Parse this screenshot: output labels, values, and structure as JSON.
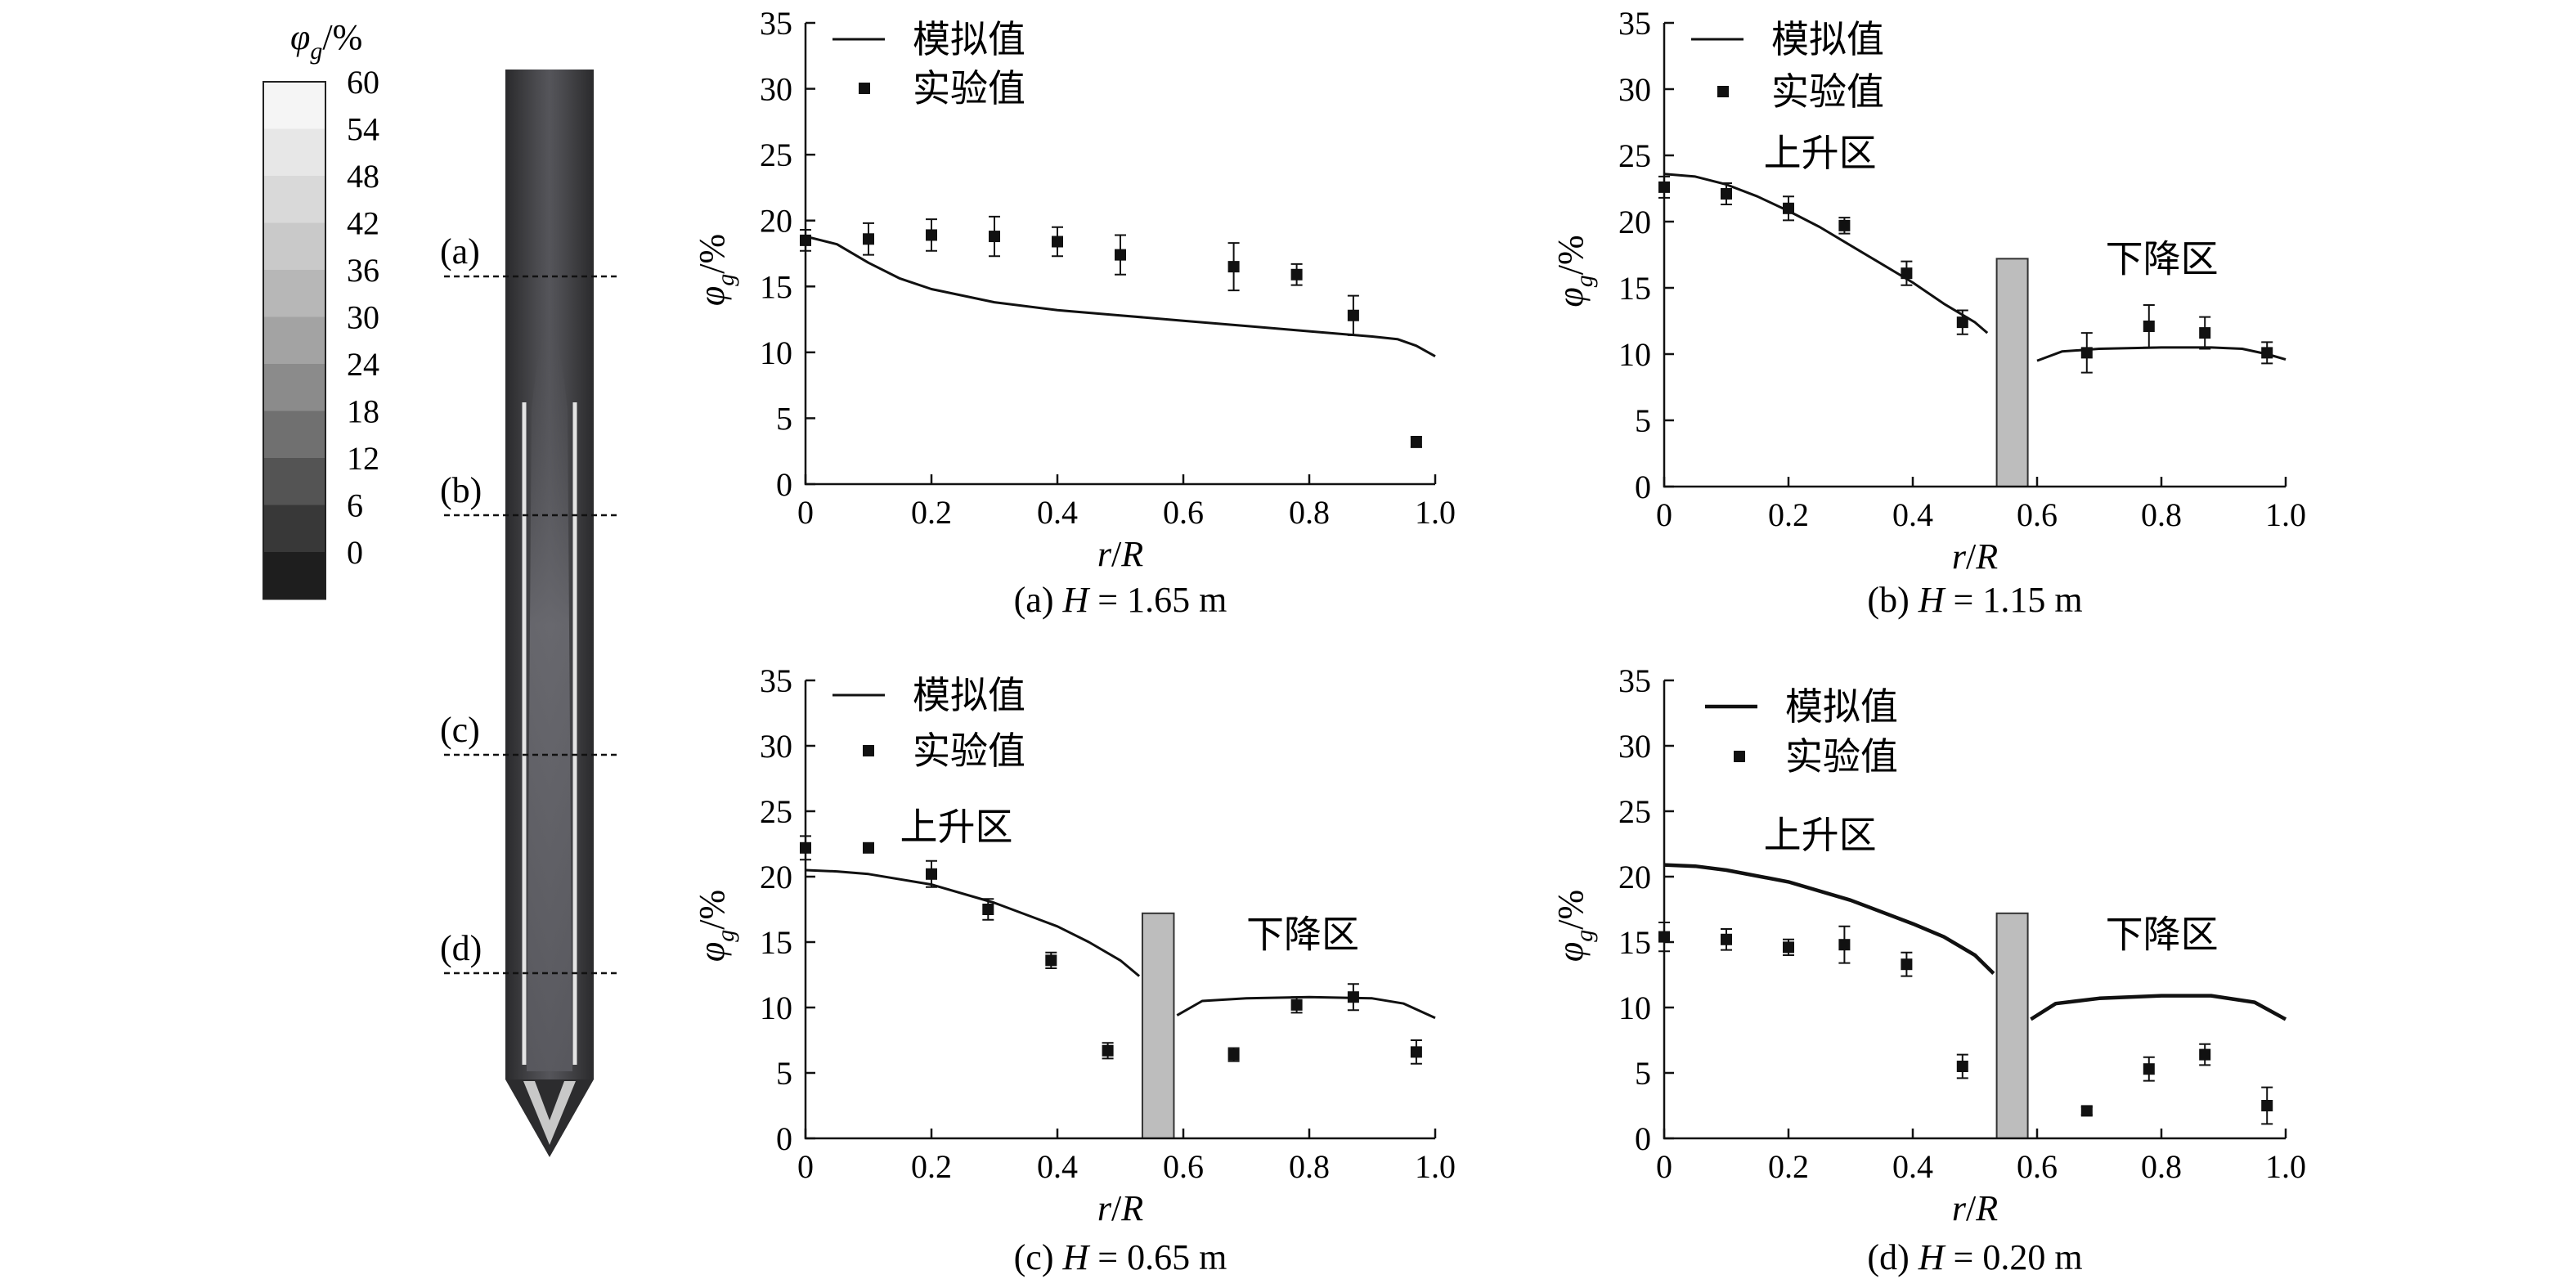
{
  "colorbar": {
    "title_sym": "φ",
    "title_sub": "g",
    "title_unit": "/%",
    "ticks": [
      "60",
      "54",
      "48",
      "42",
      "36",
      "30",
      "24",
      "18",
      "12",
      "6",
      "0"
    ],
    "colors": [
      "#f5f5f5",
      "#e7e7e7",
      "#d9d9d9",
      "#c9c9c9",
      "#b7b7b7",
      "#a3a3a3",
      "#8b8b8b",
      "#707070",
      "#545454",
      "#383838",
      "#1e1e1e"
    ]
  },
  "column": {
    "sections": [
      "(a)",
      "(b)",
      "(c)",
      "(d)"
    ]
  },
  "axis_text": {
    "ylabel_sym": "φ",
    "ylabel_sub": "g",
    "ylabel_unit": "/%",
    "xlabel_r": "r",
    "xlabel_sep": "/",
    "xlabel_R": "R"
  },
  "legend": {
    "sim": "模拟值",
    "exp": "实验值"
  },
  "chart_data": [
    {
      "type": "line+scatter",
      "caption_pre": "(a)",
      "caption_H": "H",
      "caption_val": " = 1.65 m",
      "xlim": [
        0,
        1.0
      ],
      "ylim": [
        0,
        35
      ],
      "xticks": [
        "0",
        "0.2",
        "0.4",
        "0.6",
        "0.8",
        "1.0"
      ],
      "yticks": [
        "0",
        "5",
        "10",
        "15",
        "20",
        "25",
        "30",
        "35"
      ],
      "baffle": null,
      "zone_labels": [],
      "sim_segments": [
        [
          [
            0,
            18.8
          ],
          [
            0.05,
            18.2
          ],
          [
            0.1,
            16.8
          ],
          [
            0.15,
            15.6
          ],
          [
            0.2,
            14.8
          ],
          [
            0.3,
            13.8
          ],
          [
            0.4,
            13.2
          ],
          [
            0.5,
            12.8
          ],
          [
            0.6,
            12.4
          ],
          [
            0.7,
            12.0
          ],
          [
            0.8,
            11.6
          ],
          [
            0.9,
            11.2
          ],
          [
            0.94,
            11.0
          ],
          [
            0.97,
            10.5
          ],
          [
            1.0,
            9.7
          ]
        ]
      ],
      "exp_points": [
        [
          0,
          18.5,
          0.8
        ],
        [
          0.1,
          18.6,
          1.2
        ],
        [
          0.2,
          18.9,
          1.2
        ],
        [
          0.3,
          18.8,
          1.5
        ],
        [
          0.4,
          18.4,
          1.1
        ],
        [
          0.5,
          17.4,
          1.5
        ],
        [
          0.68,
          16.5,
          1.8
        ],
        [
          0.78,
          15.9,
          0.8
        ],
        [
          0.87,
          12.8,
          1.5
        ],
        [
          0.97,
          3.2,
          0.4
        ]
      ]
    },
    {
      "type": "line+scatter",
      "caption_pre": "(b)",
      "caption_H": "H",
      "caption_val": " = 1.15 m",
      "xlim": [
        0,
        1.0
      ],
      "ylim": [
        0,
        35
      ],
      "xticks": [
        "0",
        "0.2",
        "0.4",
        "0.6",
        "0.8",
        "1.0"
      ],
      "yticks": [
        "0",
        "5",
        "10",
        "15",
        "20",
        "25",
        "30",
        "35"
      ],
      "baffle": {
        "x0": 0.535,
        "x1": 0.585,
        "y0": 0,
        "y1": 17.2
      },
      "zone_labels": [
        {
          "text": "上升区",
          "x": 0.16,
          "y": 24.2
        },
        {
          "text": "下降区",
          "x": 0.71,
          "y": 16.2
        }
      ],
      "sim_segments": [
        [
          [
            0,
            23.6
          ],
          [
            0.05,
            23.4
          ],
          [
            0.1,
            22.8
          ],
          [
            0.15,
            21.9
          ],
          [
            0.2,
            20.8
          ],
          [
            0.25,
            19.6
          ],
          [
            0.3,
            18.2
          ],
          [
            0.35,
            16.8
          ],
          [
            0.4,
            15.4
          ],
          [
            0.45,
            13.8
          ],
          [
            0.5,
            12.4
          ],
          [
            0.52,
            11.6
          ]
        ],
        [
          [
            0.6,
            9.5
          ],
          [
            0.64,
            10.2
          ],
          [
            0.7,
            10.4
          ],
          [
            0.8,
            10.5
          ],
          [
            0.88,
            10.5
          ],
          [
            0.93,
            10.4
          ],
          [
            0.97,
            10.0
          ],
          [
            1.0,
            9.6
          ]
        ]
      ],
      "exp_points": [
        [
          0,
          22.6,
          0.8
        ],
        [
          0.1,
          22.1,
          0.8
        ],
        [
          0.2,
          21.0,
          0.9
        ],
        [
          0.29,
          19.7,
          0.6
        ],
        [
          0.39,
          16.1,
          0.9
        ],
        [
          0.48,
          12.4,
          0.9
        ],
        [
          0.68,
          10.1,
          1.5
        ],
        [
          0.78,
          12.1,
          1.6
        ],
        [
          0.87,
          11.6,
          1.2
        ],
        [
          0.97,
          10.1,
          0.8
        ]
      ]
    },
    {
      "type": "line+scatter",
      "caption_pre": "(c)",
      "caption_H": "H",
      "caption_val": " = 0.65 m",
      "xlim": [
        0,
        1.0
      ],
      "ylim": [
        0,
        35
      ],
      "xticks": [
        "0",
        "0.2",
        "0.4",
        "0.6",
        "0.8",
        "1.0"
      ],
      "yticks": [
        "0",
        "5",
        "10",
        "15",
        "20",
        "25",
        "30",
        "35"
      ],
      "baffle": {
        "x0": 0.535,
        "x1": 0.585,
        "y0": 0,
        "y1": 17.2
      },
      "zone_labels": [
        {
          "text": "上升区",
          "x": 0.15,
          "y": 22.8
        },
        {
          "text": "下降区",
          "x": 0.7,
          "y": 14.6
        }
      ],
      "sim_segments": [
        [
          [
            0,
            20.5
          ],
          [
            0.05,
            20.4
          ],
          [
            0.1,
            20.2
          ],
          [
            0.2,
            19.4
          ],
          [
            0.3,
            18.0
          ],
          [
            0.4,
            16.2
          ],
          [
            0.45,
            15.0
          ],
          [
            0.5,
            13.6
          ],
          [
            0.53,
            12.4
          ]
        ],
        [
          [
            0.59,
            9.4
          ],
          [
            0.63,
            10.5
          ],
          [
            0.7,
            10.7
          ],
          [
            0.8,
            10.8
          ],
          [
            0.9,
            10.7
          ],
          [
            0.95,
            10.3
          ],
          [
            1.0,
            9.2
          ]
        ]
      ],
      "exp_points": [
        [
          0,
          22.2,
          0.9
        ],
        [
          0.1,
          22.2,
          0.3
        ],
        [
          0.2,
          20.2,
          1.0
        ],
        [
          0.29,
          17.5,
          0.8
        ],
        [
          0.39,
          13.6,
          0.6
        ],
        [
          0.48,
          6.7,
          0.6
        ],
        [
          0.68,
          6.4,
          0.5
        ],
        [
          0.78,
          10.2,
          0.6
        ],
        [
          0.87,
          10.8,
          1.0
        ],
        [
          0.97,
          6.6,
          0.9
        ]
      ]
    },
    {
      "type": "line+scatter",
      "caption_pre": "(d)",
      "caption_H": "H",
      "caption_val": " = 0.20 m",
      "xlim": [
        0,
        1.0
      ],
      "ylim": [
        0,
        35
      ],
      "xticks": [
        "0",
        "0.2",
        "0.4",
        "0.6",
        "0.8",
        "1.0"
      ],
      "yticks": [
        "0",
        "5",
        "10",
        "15",
        "20",
        "25",
        "30",
        "35"
      ],
      "baffle": {
        "x0": 0.535,
        "x1": 0.585,
        "y0": 0,
        "y1": 17.2
      },
      "zone_labels": [
        {
          "text": "上升区",
          "x": 0.16,
          "y": 22.2
        },
        {
          "text": "下降区",
          "x": 0.71,
          "y": 14.6
        }
      ],
      "sim_segments": [
        [
          [
            0,
            20.9
          ],
          [
            0.05,
            20.8
          ],
          [
            0.1,
            20.5
          ],
          [
            0.2,
            19.6
          ],
          [
            0.3,
            18.2
          ],
          [
            0.4,
            16.4
          ],
          [
            0.45,
            15.4
          ],
          [
            0.5,
            14.0
          ],
          [
            0.53,
            12.6
          ]
        ],
        [
          [
            0.59,
            9.1
          ],
          [
            0.63,
            10.3
          ],
          [
            0.7,
            10.7
          ],
          [
            0.8,
            10.9
          ],
          [
            0.88,
            10.9
          ],
          [
            0.95,
            10.4
          ],
          [
            1.0,
            9.1
          ]
        ]
      ],
      "exp_points": [
        [
          0,
          15.4,
          1.1
        ],
        [
          0.1,
          15.2,
          0.8
        ],
        [
          0.2,
          14.6,
          0.6
        ],
        [
          0.29,
          14.8,
          1.4
        ],
        [
          0.39,
          13.3,
          0.9
        ],
        [
          0.48,
          5.5,
          0.9
        ],
        [
          0.68,
          2.1,
          0.3
        ],
        [
          0.78,
          5.3,
          0.9
        ],
        [
          0.87,
          6.4,
          0.8
        ],
        [
          0.97,
          2.5,
          1.4
        ]
      ]
    }
  ]
}
